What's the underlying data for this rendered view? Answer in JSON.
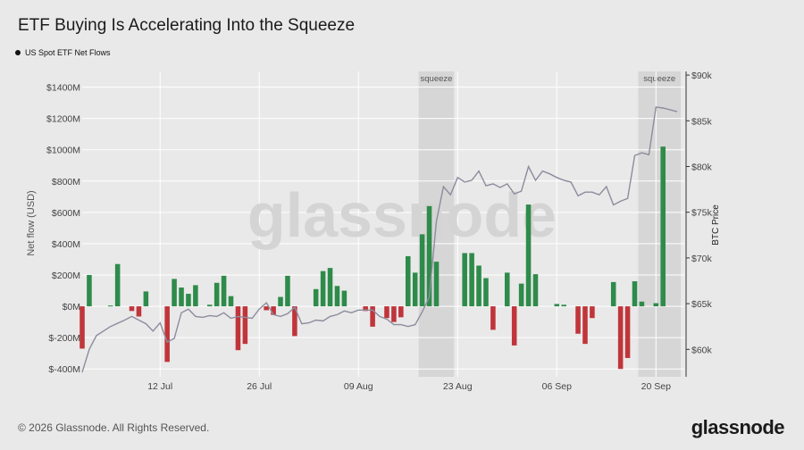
{
  "title": "ETF Buying Is Accelerating Into the Squeeze",
  "legend": {
    "series_label": "US Spot ETF Net Flows"
  },
  "footer": "© 2026 Glassnode. All Rights Reserved.",
  "brand": "glassnode",
  "watermark": "glassnode",
  "colors": {
    "positive": "#2e8b4a",
    "negative": "#c0353a",
    "price_line": "#8c8c9e",
    "squeeze_band": "#d6d6d6",
    "grid": "#ffffff",
    "axis_text": "#444444",
    "background": "#e9e9e9"
  },
  "chart_data": {
    "type": "bar",
    "ylabel": "Net flow (USD)",
    "y2label": "BTC Price",
    "ylim": [
      -450,
      1500
    ],
    "yticks": [
      -400,
      -200,
      0,
      200,
      400,
      600,
      800,
      1000,
      1200,
      1400
    ],
    "ytick_labels": [
      "$-400M",
      "$-200M",
      "$0M",
      "$200M",
      "$400M",
      "$600M",
      "$800M",
      "$1000M",
      "$1200M",
      "$1400M"
    ],
    "y2lim": [
      57000,
      90400
    ],
    "y2ticks": [
      60000,
      65000,
      70000,
      75000,
      80000,
      85000,
      90000
    ],
    "y2tick_labels": [
      "$60k",
      "$65k",
      "$70k",
      "$75k",
      "$80k",
      "$85k",
      "$90k"
    ],
    "xlim": [
      "2024-07-01",
      "2024-09-24"
    ],
    "xticks": [
      "2024-07-12",
      "2024-07-26",
      "2024-08-09",
      "2024-08-23",
      "2024-09-06",
      "2024-09-20"
    ],
    "xtick_labels": [
      "12 Jul",
      "26 Jul",
      "09 Aug",
      "23 Aug",
      "06 Sep",
      "20 Sep"
    ],
    "squeeze_regions": [
      {
        "label": "squeeze",
        "start": "2024-08-18",
        "end": "2024-08-22"
      },
      {
        "label": "squeeze",
        "start": "2024-09-18",
        "end": "2024-09-23"
      }
    ],
    "flows": [
      {
        "date": "2024-07-01",
        "value": -270
      },
      {
        "date": "2024-07-02",
        "value": 200
      },
      {
        "date": "2024-07-05",
        "value": 5
      },
      {
        "date": "2024-07-06",
        "value": 270
      },
      {
        "date": "2024-07-08",
        "value": -30
      },
      {
        "date": "2024-07-09",
        "value": -65
      },
      {
        "date": "2024-07-10",
        "value": 95
      },
      {
        "date": "2024-07-13",
        "value": -355
      },
      {
        "date": "2024-07-14",
        "value": 175
      },
      {
        "date": "2024-07-15",
        "value": 120
      },
      {
        "date": "2024-07-16",
        "value": 80
      },
      {
        "date": "2024-07-17",
        "value": 135
      },
      {
        "date": "2024-07-19",
        "value": 10
      },
      {
        "date": "2024-07-20",
        "value": 150
      },
      {
        "date": "2024-07-21",
        "value": 195
      },
      {
        "date": "2024-07-22",
        "value": 65
      },
      {
        "date": "2024-07-23",
        "value": -280
      },
      {
        "date": "2024-07-24",
        "value": -240
      },
      {
        "date": "2024-07-27",
        "value": -25
      },
      {
        "date": "2024-07-28",
        "value": -55
      },
      {
        "date": "2024-07-29",
        "value": 60
      },
      {
        "date": "2024-07-30",
        "value": 195
      },
      {
        "date": "2024-07-31",
        "value": -190
      },
      {
        "date": "2024-08-03",
        "value": 110
      },
      {
        "date": "2024-08-04",
        "value": 225
      },
      {
        "date": "2024-08-05",
        "value": 245
      },
      {
        "date": "2024-08-06",
        "value": 130
      },
      {
        "date": "2024-08-07",
        "value": 100
      },
      {
        "date": "2024-08-10",
        "value": -30
      },
      {
        "date": "2024-08-11",
        "value": -130
      },
      {
        "date": "2024-08-13",
        "value": -75
      },
      {
        "date": "2024-08-14",
        "value": -100
      },
      {
        "date": "2024-08-15",
        "value": -70
      },
      {
        "date": "2024-08-16",
        "value": 320
      },
      {
        "date": "2024-08-17",
        "value": 215
      },
      {
        "date": "2024-08-18",
        "value": 460
      },
      {
        "date": "2024-08-19",
        "value": 640
      },
      {
        "date": "2024-08-20",
        "value": 285
      },
      {
        "date": "2024-08-24",
        "value": 340
      },
      {
        "date": "2024-08-25",
        "value": 340
      },
      {
        "date": "2024-08-26",
        "value": 260
      },
      {
        "date": "2024-08-27",
        "value": 180
      },
      {
        "date": "2024-08-28",
        "value": -150
      },
      {
        "date": "2024-08-30",
        "value": 215
      },
      {
        "date": "2024-08-31",
        "value": -250
      },
      {
        "date": "2024-09-01",
        "value": 145
      },
      {
        "date": "2024-09-02",
        "value": 650
      },
      {
        "date": "2024-09-03",
        "value": 205
      },
      {
        "date": "2024-09-06",
        "value": 15
      },
      {
        "date": "2024-09-07",
        "value": 10
      },
      {
        "date": "2024-09-09",
        "value": -175
      },
      {
        "date": "2024-09-10",
        "value": -240
      },
      {
        "date": "2024-09-11",
        "value": -75
      },
      {
        "date": "2024-09-14",
        "value": 155
      },
      {
        "date": "2024-09-15",
        "value": -400
      },
      {
        "date": "2024-09-16",
        "value": -330
      },
      {
        "date": "2024-09-17",
        "value": 160
      },
      {
        "date": "2024-09-18",
        "value": 30
      },
      {
        "date": "2024-09-20",
        "value": 20
      },
      {
        "date": "2024-09-21",
        "value": 1020
      }
    ],
    "price": [
      {
        "date": "2024-07-01",
        "value": 57500
      },
      {
        "date": "2024-07-02",
        "value": 60000
      },
      {
        "date": "2024-07-03",
        "value": 61500
      },
      {
        "date": "2024-07-05",
        "value": 62500
      },
      {
        "date": "2024-07-07",
        "value": 63200
      },
      {
        "date": "2024-07-08",
        "value": 63600
      },
      {
        "date": "2024-07-09",
        "value": 63200
      },
      {
        "date": "2024-07-10",
        "value": 62800
      },
      {
        "date": "2024-07-11",
        "value": 62000
      },
      {
        "date": "2024-07-12",
        "value": 62900
      },
      {
        "date": "2024-07-13",
        "value": 60800
      },
      {
        "date": "2024-07-14",
        "value": 61200
      },
      {
        "date": "2024-07-15",
        "value": 64000
      },
      {
        "date": "2024-07-16",
        "value": 64400
      },
      {
        "date": "2024-07-17",
        "value": 63600
      },
      {
        "date": "2024-07-18",
        "value": 63500
      },
      {
        "date": "2024-07-19",
        "value": 63700
      },
      {
        "date": "2024-07-20",
        "value": 63600
      },
      {
        "date": "2024-07-21",
        "value": 64000
      },
      {
        "date": "2024-07-22",
        "value": 63400
      },
      {
        "date": "2024-07-23",
        "value": 63600
      },
      {
        "date": "2024-07-24",
        "value": 63500
      },
      {
        "date": "2024-07-25",
        "value": 63400
      },
      {
        "date": "2024-07-26",
        "value": 64400
      },
      {
        "date": "2024-07-27",
        "value": 65100
      },
      {
        "date": "2024-07-28",
        "value": 63800
      },
      {
        "date": "2024-07-29",
        "value": 63600
      },
      {
        "date": "2024-07-30",
        "value": 63900
      },
      {
        "date": "2024-07-31",
        "value": 64600
      },
      {
        "date": "2024-08-01",
        "value": 62800
      },
      {
        "date": "2024-08-02",
        "value": 62900
      },
      {
        "date": "2024-08-03",
        "value": 63200
      },
      {
        "date": "2024-08-04",
        "value": 63100
      },
      {
        "date": "2024-08-05",
        "value": 63600
      },
      {
        "date": "2024-08-06",
        "value": 63800
      },
      {
        "date": "2024-08-07",
        "value": 64200
      },
      {
        "date": "2024-08-08",
        "value": 64000
      },
      {
        "date": "2024-08-09",
        "value": 64300
      },
      {
        "date": "2024-08-10",
        "value": 64300
      },
      {
        "date": "2024-08-11",
        "value": 64300
      },
      {
        "date": "2024-08-12",
        "value": 63600
      },
      {
        "date": "2024-08-13",
        "value": 63300
      },
      {
        "date": "2024-08-14",
        "value": 62700
      },
      {
        "date": "2024-08-15",
        "value": 62700
      },
      {
        "date": "2024-08-16",
        "value": 62500
      },
      {
        "date": "2024-08-17",
        "value": 62700
      },
      {
        "date": "2024-08-18",
        "value": 64100
      },
      {
        "date": "2024-08-19",
        "value": 65700
      },
      {
        "date": "2024-08-20",
        "value": 74000
      },
      {
        "date": "2024-08-21",
        "value": 77800
      },
      {
        "date": "2024-08-22",
        "value": 76900
      },
      {
        "date": "2024-08-23",
        "value": 78800
      },
      {
        "date": "2024-08-24",
        "value": 78300
      },
      {
        "date": "2024-08-25",
        "value": 78500
      },
      {
        "date": "2024-08-26",
        "value": 79500
      },
      {
        "date": "2024-08-27",
        "value": 77900
      },
      {
        "date": "2024-08-28",
        "value": 78100
      },
      {
        "date": "2024-08-29",
        "value": 77700
      },
      {
        "date": "2024-08-30",
        "value": 78100
      },
      {
        "date": "2024-08-31",
        "value": 77000
      },
      {
        "date": "2024-09-01",
        "value": 77300
      },
      {
        "date": "2024-09-02",
        "value": 80000
      },
      {
        "date": "2024-09-03",
        "value": 78500
      },
      {
        "date": "2024-09-04",
        "value": 79500
      },
      {
        "date": "2024-09-05",
        "value": 79200
      },
      {
        "date": "2024-09-06",
        "value": 78800
      },
      {
        "date": "2024-09-07",
        "value": 78500
      },
      {
        "date": "2024-09-08",
        "value": 78300
      },
      {
        "date": "2024-09-09",
        "value": 76800
      },
      {
        "date": "2024-09-10",
        "value": 77200
      },
      {
        "date": "2024-09-11",
        "value": 77200
      },
      {
        "date": "2024-09-12",
        "value": 76900
      },
      {
        "date": "2024-09-13",
        "value": 77800
      },
      {
        "date": "2024-09-14",
        "value": 75800
      },
      {
        "date": "2024-09-15",
        "value": 76200
      },
      {
        "date": "2024-09-16",
        "value": 76500
      },
      {
        "date": "2024-09-17",
        "value": 81200
      },
      {
        "date": "2024-09-18",
        "value": 81500
      },
      {
        "date": "2024-09-19",
        "value": 81300
      },
      {
        "date": "2024-09-20",
        "value": 86500
      },
      {
        "date": "2024-09-21",
        "value": 86400
      },
      {
        "date": "2024-09-23",
        "value": 86000
      }
    ]
  }
}
